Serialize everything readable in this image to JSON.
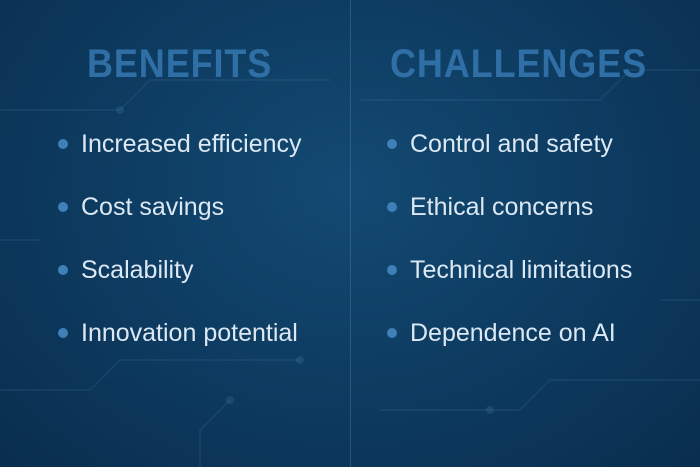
{
  "benefits": {
    "title": "BENEFITS",
    "items": [
      "Increased efficiency",
      "Cost savings",
      "Scalability",
      "Innovation potential"
    ]
  },
  "challenges": {
    "title": "CHALLENGES",
    "items": [
      "Control and safety",
      "Ethical concerns",
      "Technical limitations",
      "Dependence on AI"
    ]
  },
  "colors": {
    "background": "#0d3a5f",
    "heading": "#2f6fa5",
    "text": "#dce8f3",
    "bullet": "#3f80b8"
  }
}
